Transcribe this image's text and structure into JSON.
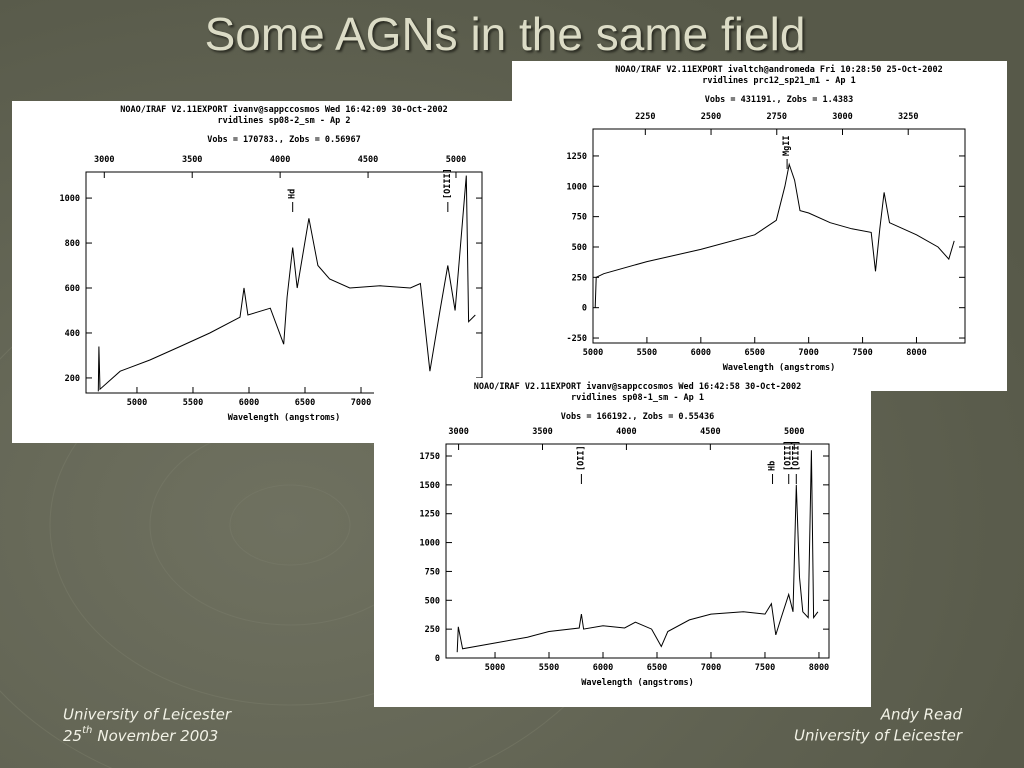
{
  "slide": {
    "title": "Some AGNs in the same field",
    "footer_left": {
      "line1": "University of Leicester",
      "day": "25",
      "suffix": "th",
      "rest": "November 2003"
    },
    "footer_right": {
      "line1": "Andy Read",
      "line2": "University of Leicester"
    }
  },
  "chart_data": [
    {
      "type": "line",
      "title": "NOAO/IRAF V2.11EXPORT ivanv@sappccosmos Wed 16:42:09 30-Oct-2002",
      "subtitle": "rvidlines sp08-2_sm - Ap 2",
      "caption": "Vobs = 170783., Zobs = 0.56967",
      "xlabel": "Wavelength (angstroms)",
      "color": "#000000",
      "x": [
        4655,
        4660,
        4670,
        4850,
        5115,
        5385,
        5650,
        5920,
        5955,
        5990,
        6190,
        6310,
        6340,
        6390,
        6430,
        6535,
        6615,
        6720,
        6900,
        7170,
        7440,
        7530,
        7615,
        7705,
        7775,
        7840,
        7940,
        7960,
        8020
      ],
      "values": [
        140,
        340,
        150,
        230,
        280,
        340,
        400,
        470,
        600,
        480,
        510,
        350,
        560,
        780,
        600,
        910,
        700,
        640,
        600,
        610,
        600,
        620,
        230,
        500,
        700,
        500,
        1100,
        450,
        480
      ],
      "xlim": [
        4545,
        8080
      ],
      "xticks": [
        5000,
        5500,
        6000,
        6500,
        7000
      ],
      "x2lim": [
        2896,
        5148
      ],
      "x2ticks": [
        3000,
        3500,
        4000,
        4500,
        5000
      ],
      "ylim": [
        133,
        1116
      ],
      "yticks": [
        200,
        400,
        600,
        800,
        1000
      ],
      "annotations": [
        {
          "text": "Hd",
          "x": 6390
        },
        {
          "text": "[OIII]",
          "x": 7775
        }
      ]
    },
    {
      "type": "line",
      "title": "NOAO/IRAF V2.11EXPORT ivaltch@andromeda Fri 10:28:50 25-Oct-2002",
      "subtitle": "rvidlines prc12_sp21_m1 - Ap 1",
      "caption": "Vobs = 431191., Zobs = 1.4383",
      "xlabel": "Wavelength (angstroms)",
      "color": "#000000",
      "x": [
        5020,
        5030,
        5100,
        5500,
        6000,
        6500,
        6700,
        6780,
        6820,
        6870,
        6920,
        7000,
        7200,
        7400,
        7580,
        7620,
        7660,
        7700,
        7750,
        8000,
        8200,
        8300,
        8350
      ],
      "values": [
        0,
        250,
        280,
        380,
        480,
        600,
        720,
        1000,
        1180,
        1050,
        800,
        780,
        700,
        650,
        620,
        300,
        650,
        950,
        700,
        600,
        500,
        400,
        550
      ],
      "xlim": [
        5000,
        8450
      ],
      "xticks": [
        5000,
        5500,
        6000,
        6500,
        7000,
        7500,
        8000
      ],
      "x2lim": [
        2051,
        3466
      ],
      "x2ticks": [
        2250,
        2500,
        2750,
        3000,
        3250
      ],
      "ylim": [
        -291,
        1472
      ],
      "yticks": [
        -250,
        0,
        250,
        500,
        750,
        1000,
        1250
      ],
      "annotations": [
        {
          "text": "MgII",
          "x": 6800
        }
      ]
    },
    {
      "type": "line",
      "title": "NOAO/IRAF V2.11EXPORT ivanv@sappccosmos Wed 16:42:58 30-Oct-2002",
      "subtitle": "rvidlines sp08-1_sm - Ap 1",
      "caption": "Vobs = 166192., Zobs = 0.55436",
      "xlabel": "Wavelength (angstroms)",
      "color": "#000000",
      "x": [
        4650,
        4660,
        4700,
        5000,
        5300,
        5500,
        5780,
        5800,
        5820,
        6000,
        6200,
        6300,
        6450,
        6540,
        6600,
        6800,
        7000,
        7300,
        7500,
        7560,
        7600,
        7650,
        7720,
        7760,
        7790,
        7820,
        7850,
        7900,
        7930,
        7950,
        7990
      ],
      "values": [
        50,
        270,
        80,
        130,
        180,
        230,
        260,
        380,
        250,
        280,
        260,
        310,
        250,
        100,
        230,
        330,
        380,
        400,
        380,
        470,
        200,
        350,
        550,
        400,
        1500,
        700,
        400,
        350,
        1800,
        350,
        400
      ],
      "xlim": [
        4546,
        8093
      ],
      "xticks": [
        5000,
        5500,
        6000,
        6500,
        7000,
        7500,
        8000
      ],
      "x2lim": [
        2925,
        5207
      ],
      "x2ticks": [
        3000,
        3500,
        4000,
        4500,
        5000
      ],
      "ylim": [
        0,
        1854
      ],
      "yticks": [
        0,
        250,
        500,
        750,
        1000,
        1250,
        1500,
        1750
      ],
      "annotations": [
        {
          "text": "[OII]",
          "x": 5800
        },
        {
          "text": "Hb",
          "x": 7570
        },
        {
          "text": "[OIII]",
          "x": 7720
        },
        {
          "text": "[OIII]",
          "x": 7790
        }
      ]
    }
  ]
}
